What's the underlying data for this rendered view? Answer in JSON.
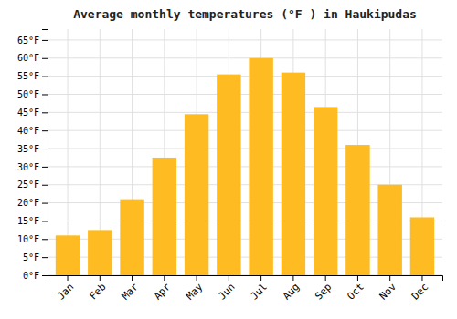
{
  "chart_data": {
    "type": "bar",
    "title": "Average monthly temperatures (°F ) in Haukipudas",
    "categories": [
      "Jan",
      "Feb",
      "Mar",
      "Apr",
      "May",
      "Jun",
      "Jul",
      "Aug",
      "Sep",
      "Oct",
      "Nov",
      "Dec"
    ],
    "values": [
      11,
      12.5,
      21,
      32.5,
      44.5,
      55.5,
      60,
      56,
      46.5,
      36,
      25,
      16
    ],
    "color": "#FFBB22",
    "ylim": [
      0,
      68
    ],
    "yticks": [
      {
        "value": 0,
        "label": "0°F"
      },
      {
        "value": 5,
        "label": "5°F"
      },
      {
        "value": 10,
        "label": "10°F"
      },
      {
        "value": 15,
        "label": "15°F"
      },
      {
        "value": 20,
        "label": "20°F"
      },
      {
        "value": 25,
        "label": "25°F"
      },
      {
        "value": 30,
        "label": "30°F"
      },
      {
        "value": 35,
        "label": "35°F"
      },
      {
        "value": 40,
        "label": "40°F"
      },
      {
        "value": 45,
        "label": "45°F"
      },
      {
        "value": 50,
        "label": "50°F"
      },
      {
        "value": 55,
        "label": "55°F"
      },
      {
        "value": 60,
        "label": "60°F"
      },
      {
        "value": 65,
        "label": "65°F"
      }
    ],
    "grid": true
  }
}
